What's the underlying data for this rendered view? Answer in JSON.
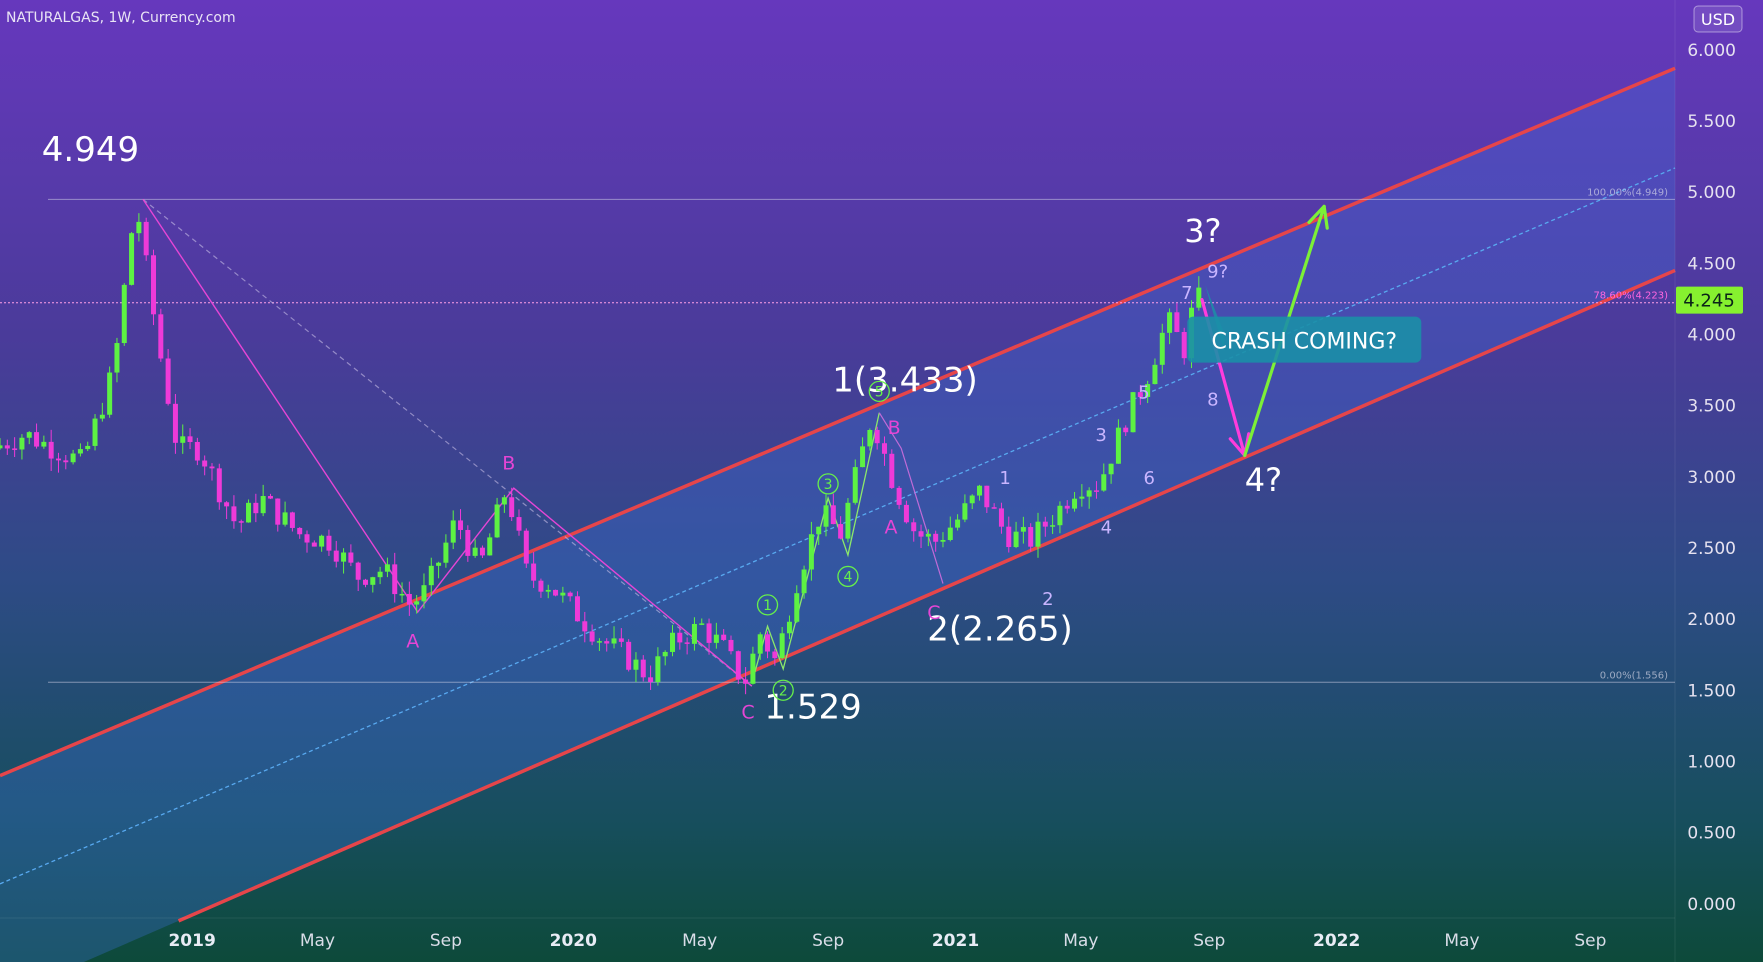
{
  "header": {
    "title": "NATURALGAS, 1W, Currency.com",
    "currency": "USD"
  },
  "price_tag": {
    "value": "4.245",
    "color": "#86f12f"
  },
  "colors": {
    "bg_top": "#5f3aba",
    "bg_bottom": "#0f4a3c",
    "channel": "#e6454a",
    "channel_fill": "#3f6fd9",
    "bull": "#5df243",
    "bear": "#ee3ad8",
    "green_arrow": "#7cf037",
    "pink_arrow": "#ff3cdc",
    "callout": "#1b8fa7"
  },
  "chart_data": {
    "type": "candlestick",
    "symbol": "NATURALGAS",
    "interval": "1W",
    "source": "Currency.com",
    "currency": "USD",
    "ylim": [
      -0.1,
      6.35
    ],
    "yticks": [
      "6.000",
      "5.500",
      "5.000",
      "4.500",
      "4.000",
      "3.500",
      "3.000",
      "2.500",
      "2.000",
      "1.500",
      "1.000",
      "0.500",
      "0.000"
    ],
    "x_range": [
      "2018-07-01",
      "2022-11-21"
    ],
    "xticks": [
      {
        "label": "2019",
        "date": "2019-01-01",
        "bold": true
      },
      {
        "label": "May",
        "date": "2019-05-01",
        "bold": false
      },
      {
        "label": "Sep",
        "date": "2019-09-01",
        "bold": false
      },
      {
        "label": "2020",
        "date": "2020-01-01",
        "bold": true
      },
      {
        "label": "May",
        "date": "2020-05-01",
        "bold": false
      },
      {
        "label": "Sep",
        "date": "2020-09-01",
        "bold": false
      },
      {
        "label": "2021",
        "date": "2021-01-01",
        "bold": true
      },
      {
        "label": "May",
        "date": "2021-05-01",
        "bold": false
      },
      {
        "label": "Sep",
        "date": "2021-09-01",
        "bold": false
      },
      {
        "label": "2022",
        "date": "2022-01-01",
        "bold": true
      },
      {
        "label": "May",
        "date": "2022-05-01",
        "bold": false
      },
      {
        "label": "Sep",
        "date": "2022-09-01",
        "bold": false
      }
    ],
    "last_price": 4.245,
    "pivots": [
      {
        "date": "2018-07-01",
        "price": 3.2
      },
      {
        "date": "2018-08-01",
        "price": 3.3
      },
      {
        "date": "2018-09-25",
        "price": 3.1
      },
      {
        "date": "2018-10-25",
        "price": 3.75
      },
      {
        "date": "2018-11-15",
        "price": 4.949
      },
      {
        "date": "2018-12-05",
        "price": 4.0
      },
      {
        "date": "2018-12-25",
        "price": 3.2
      },
      {
        "date": "2019-01-15",
        "price": 3.2
      },
      {
        "date": "2019-02-20",
        "price": 2.65
      },
      {
        "date": "2019-03-15",
        "price": 2.85
      },
      {
        "date": "2019-04-20",
        "price": 2.6
      },
      {
        "date": "2019-05-20",
        "price": 2.55
      },
      {
        "date": "2019-06-15",
        "price": 2.3
      },
      {
        "date": "2019-07-10",
        "price": 2.35
      },
      {
        "date": "2019-08-05",
        "price": 2.1
      },
      {
        "date": "2019-08-20",
        "price": 2.2
      },
      {
        "date": "2019-09-18",
        "price": 2.7
      },
      {
        "date": "2019-10-10",
        "price": 2.35
      },
      {
        "date": "2019-11-05",
        "price": 2.92
      },
      {
        "date": "2019-11-25",
        "price": 2.3
      },
      {
        "date": "2019-12-15",
        "price": 2.25
      },
      {
        "date": "2020-01-10",
        "price": 2.05
      },
      {
        "date": "2020-02-05",
        "price": 1.85
      },
      {
        "date": "2020-02-25",
        "price": 1.75
      },
      {
        "date": "2020-03-20",
        "price": 1.6
      },
      {
        "date": "2020-04-15",
        "price": 1.85
      },
      {
        "date": "2020-05-10",
        "price": 1.95
      },
      {
        "date": "2020-05-30",
        "price": 1.8
      },
      {
        "date": "2020-06-20",
        "price": 1.55
      },
      {
        "date": "2020-07-05",
        "price": 1.9
      },
      {
        "date": "2020-07-20",
        "price": 1.7
      },
      {
        "date": "2020-08-10",
        "price": 2.3
      },
      {
        "date": "2020-09-01",
        "price": 2.75
      },
      {
        "date": "2020-09-20",
        "price": 2.6
      },
      {
        "date": "2020-10-20",
        "price": 3.43
      },
      {
        "date": "2020-11-10",
        "price": 2.95
      },
      {
        "date": "2020-12-01",
        "price": 2.6
      },
      {
        "date": "2020-12-20",
        "price": 2.55
      },
      {
        "date": "2021-01-10",
        "price": 2.7
      },
      {
        "date": "2021-02-01",
        "price": 2.9
      },
      {
        "date": "2021-02-25",
        "price": 2.6
      },
      {
        "date": "2021-03-20",
        "price": 2.55
      },
      {
        "date": "2021-04-15",
        "price": 2.75
      },
      {
        "date": "2021-05-05",
        "price": 2.95
      },
      {
        "date": "2021-05-25",
        "price": 2.95
      },
      {
        "date": "2021-06-20",
        "price": 3.4
      },
      {
        "date": "2021-07-10",
        "price": 3.7
      },
      {
        "date": "2021-07-30",
        "price": 4.1
      },
      {
        "date": "2021-08-15",
        "price": 3.9
      },
      {
        "date": "2021-08-25",
        "price": 4.245
      }
    ],
    "channel_lines": [
      {
        "name": "upper",
        "start": {
          "date": "2018-07-01",
          "price": 0.9
        },
        "end": {
          "date": "2022-11-21",
          "price": 5.87
        }
      },
      {
        "name": "lower",
        "start": {
          "date": "2018-12-19",
          "price": -0.12
        },
        "end": {
          "date": "2022-11-21",
          "price": 4.45
        }
      },
      {
        "name": "mid",
        "start": {
          "date": "2018-07-01",
          "price": 0.14
        },
        "end": {
          "date": "2022-11-21",
          "price": 5.17
        }
      }
    ],
    "fib_levels": [
      {
        "label": "100.00%(4.949)",
        "price": 4.949
      },
      {
        "label": "78.60%(4.223)",
        "price": 4.223
      },
      {
        "label": "0.00%(1.556)",
        "price": 1.556
      }
    ],
    "zigzag_pink": [
      {
        "date": "2018-11-15",
        "price": 4.949
      },
      {
        "date": "2019-08-05",
        "price": 2.05
      },
      {
        "date": "2019-11-05",
        "price": 2.92
      },
      {
        "date": "2020-06-20",
        "price": 1.529
      }
    ],
    "zigzag_dashed": [
      {
        "date": "2018-11-15",
        "price": 4.949
      },
      {
        "date": "2020-06-20",
        "price": 1.529
      }
    ],
    "zigzag_green": [
      {
        "date": "2020-06-20",
        "price": 1.55
      },
      {
        "date": "2020-07-05",
        "price": 1.95
      },
      {
        "date": "2020-07-20",
        "price": 1.65
      },
      {
        "date": "2020-09-01",
        "price": 2.85
      },
      {
        "date": "2020-09-20",
        "price": 2.45
      },
      {
        "date": "2020-10-20",
        "price": 3.45
      }
    ],
    "zigzag_correction": [
      {
        "date": "2020-10-20",
        "price": 3.45
      },
      {
        "date": "2020-11-10",
        "price": 3.2
      },
      {
        "date": "2020-12-20",
        "price": 2.25
      }
    ],
    "forecast": {
      "pink": [
        {
          "date": "2021-08-25",
          "price": 4.245
        },
        {
          "date": "2021-10-05",
          "price": 3.15
        }
      ],
      "green": [
        {
          "date": "2021-10-05",
          "price": 3.15
        },
        {
          "date": "2021-12-20",
          "price": 4.9
        }
      ]
    },
    "annotations": [
      {
        "text": "4.949",
        "date": "2018-08-10",
        "price": 5.22,
        "size": 34,
        "color": "#ffffff"
      },
      {
        "text": "1(3.433)",
        "date": "2020-09-05",
        "price": 3.6,
        "size": 34,
        "color": "#ffffff"
      },
      {
        "text": "2(2.265)",
        "date": "2020-12-05",
        "price": 1.85,
        "size": 34,
        "color": "#ffffff"
      },
      {
        "text": "1.529",
        "date": "2020-07-02",
        "price": 1.3,
        "size": 34,
        "color": "#ffffff"
      },
      {
        "text": "3?",
        "date": "2021-08-08",
        "price": 4.65,
        "size": 32,
        "color": "#ffffff"
      },
      {
        "text": "4?",
        "date": "2021-10-05",
        "price": 2.9,
        "size": 32,
        "color": "#ffffff"
      },
      {
        "text": "A",
        "date": "2019-07-25",
        "price": 1.8,
        "size": 19,
        "color": "#e545d5"
      },
      {
        "text": "B",
        "date": "2019-10-25",
        "price": 3.05,
        "size": 19,
        "color": "#e545d5"
      },
      {
        "text": "C",
        "date": "2020-06-10",
        "price": 1.3,
        "size": 19,
        "color": "#e545d5"
      },
      {
        "text": "B",
        "date": "2020-10-28",
        "price": 3.3,
        "size": 19,
        "color": "#e545d5"
      },
      {
        "text": "A",
        "date": "2020-10-25",
        "price": 2.6,
        "size": 19,
        "color": "#e545d5"
      },
      {
        "text": "C",
        "date": "2020-12-05",
        "price": 2.0,
        "size": 19,
        "color": "#e545d5"
      },
      {
        "text": "5",
        "date": "2021-06-25",
        "price": 3.55,
        "size": 18,
        "color": "#c9b5ff"
      },
      {
        "text": "3",
        "date": "2021-05-15",
        "price": 3.25,
        "size": 18,
        "color": "#c9b5ff"
      },
      {
        "text": "6",
        "date": "2021-06-30",
        "price": 2.95,
        "size": 18,
        "color": "#c9b5ff"
      },
      {
        "text": "4",
        "date": "2021-05-20",
        "price": 2.6,
        "size": 18,
        "color": "#c9b5ff"
      },
      {
        "text": "1",
        "date": "2021-02-12",
        "price": 2.95,
        "size": 18,
        "color": "#c9b5ff"
      },
      {
        "text": "2",
        "date": "2021-03-25",
        "price": 2.1,
        "size": 18,
        "color": "#c9b5ff"
      },
      {
        "text": "7",
        "date": "2021-08-05",
        "price": 4.25,
        "size": 18,
        "color": "#c9b5ff"
      },
      {
        "text": "9?",
        "date": "2021-08-30",
        "price": 4.4,
        "size": 18,
        "color": "#c9b5ff"
      },
      {
        "text": "8",
        "date": "2021-08-30",
        "price": 3.5,
        "size": 18,
        "color": "#c9b5ff"
      }
    ],
    "circled": [
      {
        "text": "1",
        "date": "2020-07-05",
        "price": 2.1
      },
      {
        "text": "2",
        "date": "2020-07-20",
        "price": 1.5
      },
      {
        "text": "3",
        "date": "2020-09-01",
        "price": 2.95
      },
      {
        "text": "4",
        "date": "2020-09-20",
        "price": 2.3
      },
      {
        "text": "5",
        "date": "2020-10-20",
        "price": 3.6
      }
    ],
    "callout": {
      "text": "CRASH COMING?",
      "date": "2021-12-01",
      "price": 3.95,
      "anchor_date": "2021-08-28",
      "anchor_price": 4.35
    }
  }
}
